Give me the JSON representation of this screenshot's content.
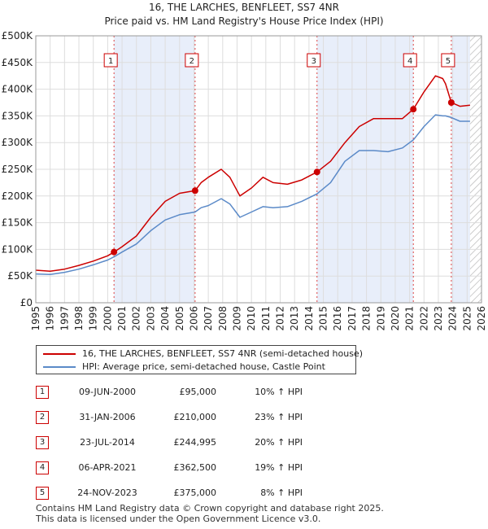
{
  "chart_data": {
    "type": "line",
    "title": "16, THE LARCHES, BENFLEET, SS7 4NR",
    "subtitle": "Price paid vs. HM Land Registry's House Price Index (HPI)",
    "xlim": [
      1995,
      2026
    ],
    "ylim": [
      0,
      500000
    ],
    "y_ticks": [
      0,
      50000,
      100000,
      150000,
      200000,
      250000,
      300000,
      350000,
      400000,
      450000,
      500000
    ],
    "y_tick_labels": [
      "£0",
      "£50K",
      "£100K",
      "£150K",
      "£200K",
      "£250K",
      "£300K",
      "£350K",
      "£400K",
      "£450K",
      "£500K"
    ],
    "x_ticks": [
      "1995",
      "1996",
      "1997",
      "1998",
      "1999",
      "2000",
      "2001",
      "2002",
      "2003",
      "2004",
      "2005",
      "2006",
      "2007",
      "2008",
      "2009",
      "2010",
      "2011",
      "2012",
      "2013",
      "2014",
      "2015",
      "2016",
      "2017",
      "2018",
      "2019",
      "2020",
      "2021",
      "2022",
      "2023",
      "2024",
      "2025",
      "2026"
    ],
    "grid": true,
    "shaded_periods": [
      [
        2000.44,
        2006.08
      ],
      [
        2014.56,
        2021.26
      ],
      [
        2023.9,
        2025.2
      ]
    ],
    "hatch_from": 2025.2,
    "series": [
      {
        "name": "16, THE LARCHES, BENFLEET, SS7 4NR (semi-detached house)",
        "color": "#cc0000",
        "points": [
          [
            1995,
            61000
          ],
          [
            1996,
            59000
          ],
          [
            1997,
            63000
          ],
          [
            1998,
            70000
          ],
          [
            1999,
            78000
          ],
          [
            2000,
            88000
          ],
          [
            2000.44,
            95000
          ],
          [
            2001,
            105000
          ],
          [
            2002,
            125000
          ],
          [
            2003,
            160000
          ],
          [
            2004,
            190000
          ],
          [
            2005,
            205000
          ],
          [
            2006.08,
            210000
          ],
          [
            2006.5,
            225000
          ],
          [
            2007,
            235000
          ],
          [
            2007.9,
            250000
          ],
          [
            2008.5,
            235000
          ],
          [
            2009.2,
            200000
          ],
          [
            2010,
            215000
          ],
          [
            2010.8,
            235000
          ],
          [
            2011.5,
            225000
          ],
          [
            2012.5,
            222000
          ],
          [
            2013.5,
            230000
          ],
          [
            2014.56,
            244995
          ],
          [
            2015.5,
            265000
          ],
          [
            2016.5,
            300000
          ],
          [
            2017.5,
            330000
          ],
          [
            2018.5,
            345000
          ],
          [
            2019.5,
            345000
          ],
          [
            2020.5,
            345000
          ],
          [
            2021.26,
            362500
          ],
          [
            2022,
            395000
          ],
          [
            2022.8,
            425000
          ],
          [
            2023.3,
            420000
          ],
          [
            2023.5,
            410000
          ],
          [
            2023.9,
            375000
          ],
          [
            2024.5,
            368000
          ],
          [
            2025.2,
            370000
          ]
        ]
      },
      {
        "name": "HPI: Average price, semi-detached house, Castle Point",
        "color": "#5b8ac8",
        "points": [
          [
            1995,
            54000
          ],
          [
            1996,
            53000
          ],
          [
            1997,
            57000
          ],
          [
            1998,
            63000
          ],
          [
            1999,
            71000
          ],
          [
            2000,
            80000
          ],
          [
            2000.44,
            86000
          ],
          [
            2001,
            95000
          ],
          [
            2002,
            110000
          ],
          [
            2003,
            135000
          ],
          [
            2004,
            155000
          ],
          [
            2005,
            165000
          ],
          [
            2006.08,
            170000
          ],
          [
            2006.5,
            178000
          ],
          [
            2007,
            182000
          ],
          [
            2007.9,
            195000
          ],
          [
            2008.5,
            185000
          ],
          [
            2009.2,
            160000
          ],
          [
            2010,
            170000
          ],
          [
            2010.8,
            180000
          ],
          [
            2011.5,
            178000
          ],
          [
            2012.5,
            180000
          ],
          [
            2013.5,
            190000
          ],
          [
            2014.56,
            204000
          ],
          [
            2015.5,
            225000
          ],
          [
            2016.5,
            265000
          ],
          [
            2017.5,
            285000
          ],
          [
            2018.5,
            285000
          ],
          [
            2019.5,
            283000
          ],
          [
            2020.5,
            290000
          ],
          [
            2021.26,
            305000
          ],
          [
            2022,
            330000
          ],
          [
            2022.8,
            352000
          ],
          [
            2023.3,
            350000
          ],
          [
            2023.5,
            350000
          ],
          [
            2023.9,
            347000
          ],
          [
            2024.5,
            340000
          ],
          [
            2025.2,
            340000
          ]
        ]
      }
    ],
    "sales": [
      {
        "num": "1",
        "date": "09-JUN-2000",
        "year": 2000.44,
        "price": 95000,
        "price_label": "£95,000",
        "hpi_text": "10% ↑ HPI"
      },
      {
        "num": "2",
        "date": "31-JAN-2006",
        "year": 2006.08,
        "price": 210000,
        "price_label": "£210,000",
        "hpi_text": "23% ↑ HPI"
      },
      {
        "num": "3",
        "date": "23-JUL-2014",
        "year": 2014.56,
        "price": 244995,
        "price_label": "£244,995",
        "hpi_text": "20% ↑ HPI"
      },
      {
        "num": "4",
        "date": "06-APR-2021",
        "year": 2021.26,
        "price": 362500,
        "price_label": "£362,500",
        "hpi_text": "19% ↑ HPI"
      },
      {
        "num": "5",
        "date": "24-NOV-2023",
        "year": 2023.9,
        "price": 375000,
        "price_label": "£375,000",
        "hpi_text": "8% ↑ HPI"
      }
    ]
  },
  "footer": {
    "line1": "Contains HM Land Registry data © Crown copyright and database right 2025.",
    "line2": "This data is licensed under the Open Government Licence v3.0."
  }
}
